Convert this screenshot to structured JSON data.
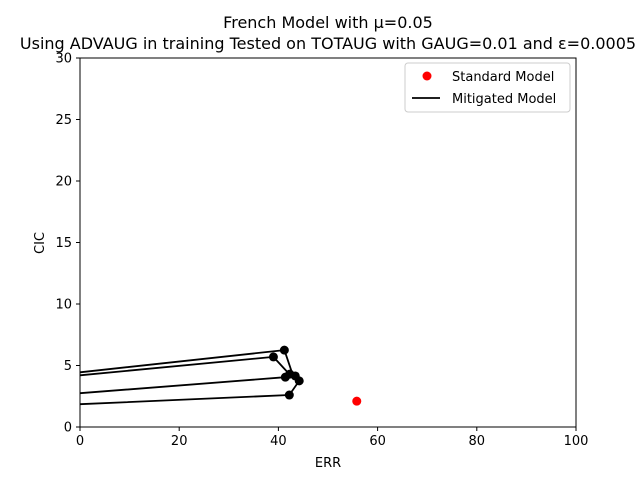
{
  "chart_data": {
    "type": "scatter",
    "title_line1": "French Model with μ=0.05",
    "title_line2": "Using ADVAUG in training Tested on TOTAUG with GAUG=0.01 and ε=0.0005",
    "xlabel": "ERR",
    "ylabel": "CIC",
    "xlim": [
      0,
      100
    ],
    "ylim": [
      0,
      30
    ],
    "x_ticks": [
      0,
      20,
      40,
      60,
      80,
      100
    ],
    "y_ticks": [
      0,
      5,
      10,
      15,
      20,
      25,
      30
    ],
    "grid": false,
    "legend_position": "top-right",
    "series": [
      {
        "name": "Standard Model",
        "kind": "scatter",
        "color": "#ff0000",
        "points": [
          [
            55.8,
            2.1
          ]
        ]
      },
      {
        "name": "Mitigated Model",
        "kind": "line",
        "color": "#000000",
        "points": [
          [
            0,
            1.85
          ],
          [
            42.2,
            2.6
          ],
          [
            44.2,
            3.75
          ],
          [
            43.5,
            4.05
          ],
          [
            42.8,
            4.35
          ],
          [
            41.4,
            4.05
          ],
          [
            0,
            2.75
          ]
        ],
        "extra_segments": [
          [
            [
              0,
              4.45
            ],
            [
              41.2,
              6.25
            ],
            [
              42.8,
              4.35
            ],
            [
              44.2,
              3.85
            ]
          ],
          [
            [
              0,
              4.2
            ],
            [
              39.0,
              5.7
            ],
            [
              42.2,
              4.3
            ],
            [
              41.3,
              3.9
            ]
          ]
        ],
        "markers": [
          [
            42.2,
            2.6
          ],
          [
            44.2,
            3.75
          ],
          [
            41.4,
            4.05
          ],
          [
            41.2,
            6.25
          ],
          [
            39.0,
            5.7
          ],
          [
            42.3,
            4.3
          ],
          [
            43.4,
            4.15
          ]
        ]
      }
    ]
  }
}
